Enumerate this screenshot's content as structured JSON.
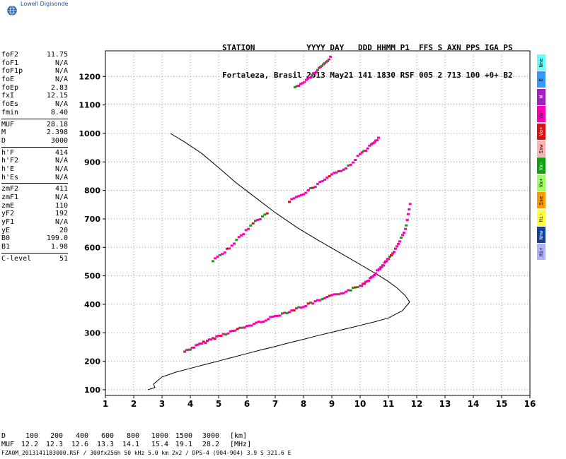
{
  "brand": {
    "text": "Lowell Digisonde",
    "color": "#1a4fa0",
    "icon": "globe-icon"
  },
  "header": {
    "line1": "STATION           YYYY DAY   DDD HHMM P1  FFS S AXN PPS IGA PS",
    "line2": "Fortaleza, Brasil 2013 May21 141 1830 RSF 005 2 713 100 +0+ B2"
  },
  "params": {
    "group1": [
      {
        "label": "foF2",
        "value": "11.75"
      },
      {
        "label": "foF1",
        "value": "N/A"
      },
      {
        "label": "foF1p",
        "value": "N/A"
      },
      {
        "label": "foE",
        "value": "N/A"
      },
      {
        "label": "foEp",
        "value": "2.83"
      },
      {
        "label": "fxI",
        "value": "12.15"
      },
      {
        "label": "foEs",
        "value": "N/A"
      },
      {
        "label": "fmin",
        "value": "8.40"
      }
    ],
    "group2": [
      {
        "label": "MUF",
        "value": "28.18"
      },
      {
        "label": "M",
        "value": "2.398"
      },
      {
        "label": "D",
        "value": "3000"
      }
    ],
    "group3": [
      {
        "label": "h'F",
        "value": "414"
      },
      {
        "label": "h'F2",
        "value": "N/A"
      },
      {
        "label": "h'E",
        "value": "N/A"
      },
      {
        "label": "h'Es",
        "value": "N/A"
      }
    ],
    "group4": [
      {
        "label": "zmF2",
        "value": "411"
      },
      {
        "label": "zmF1",
        "value": "N/A"
      },
      {
        "label": "zmE",
        "value": "110"
      },
      {
        "label": "yF2",
        "value": "192"
      },
      {
        "label": "yF1",
        "value": "N/A"
      },
      {
        "label": "yE",
        "value": "20"
      },
      {
        "label": "B0",
        "value": "199.0"
      },
      {
        "label": "B1",
        "value": "1.98"
      }
    ],
    "group5": [
      {
        "label": "C-level",
        "value": "51"
      }
    ]
  },
  "legend": [
    {
      "label": "Nne",
      "color": "#66ffff"
    },
    {
      "label": "E",
      "color": "#3399ff"
    },
    {
      "label": "W",
      "color": "#a020c0"
    },
    {
      "label": "Vo-",
      "color": "#ff00b0"
    },
    {
      "label": "Vo+",
      "color": "#e01010"
    },
    {
      "label": "Ssw",
      "color": "#ffb0b0"
    },
    {
      "label": "Vx-",
      "color": "#10a010"
    },
    {
      "label": "Vx+",
      "color": "#a0ff60"
    },
    {
      "label": "Sse",
      "color": "#ff9900"
    },
    {
      "label": "Hi-",
      "color": "#ffff40"
    },
    {
      "label": "Nnw",
      "color": "#1040a0"
    },
    {
      "label": "Hi+",
      "color": "#b0b0ff"
    }
  ],
  "muf_table": {
    "row1_label": "D",
    "row1": [
      "100",
      "200",
      "400",
      "600",
      "800",
      "1000",
      "1500",
      "3000",
      "[km]"
    ],
    "row2_label": "MUF",
    "row2": [
      "12.2",
      "12.3",
      "12.6",
      "13.3",
      "14.1",
      "15.4",
      "19.1",
      "28.2",
      "[MHz]"
    ]
  },
  "footer": "FZA0M_2013141183000.RSF / 300fx256h 50 kHz 5.0 km 2x2 / DPS-4 (904-904)  3.9 S 321.6 E",
  "chart_data": {
    "type": "scatter",
    "title": "",
    "xlabel": "",
    "ylabel": "",
    "xlim": [
      1,
      16
    ],
    "ylim": [
      80,
      1290
    ],
    "x_ticks": [
      1,
      2,
      3,
      4,
      5,
      6,
      7,
      8,
      9,
      10,
      11,
      12,
      13,
      14,
      15,
      16
    ],
    "y_ticks": [
      100,
      200,
      300,
      400,
      500,
      600,
      700,
      800,
      900,
      1000,
      1100,
      1200
    ],
    "grid": "dotted",
    "legend_placement": "right",
    "series": [
      {
        "kind": "profile-line",
        "color": "#000000",
        "points": [
          [
            2.5,
            100
          ],
          [
            2.75,
            108
          ],
          [
            2.7,
            120
          ],
          [
            3.0,
            145
          ],
          [
            3.5,
            162
          ],
          [
            4.0,
            175
          ],
          [
            4.5,
            188
          ],
          [
            5.0,
            201
          ],
          [
            5.5,
            214
          ],
          [
            6.0,
            227
          ],
          [
            6.5,
            240
          ],
          [
            7.0,
            252
          ],
          [
            7.5,
            265
          ],
          [
            8.0,
            277
          ],
          [
            8.5,
            290
          ],
          [
            9.0,
            302
          ],
          [
            9.5,
            314
          ],
          [
            10.0,
            326
          ],
          [
            10.5,
            338
          ],
          [
            11.0,
            352
          ],
          [
            11.5,
            378
          ],
          [
            11.75,
            408
          ],
          [
            11.6,
            430
          ],
          [
            11.3,
            458
          ],
          [
            11.0,
            480
          ],
          [
            10.6,
            505
          ],
          [
            10.0,
            540
          ],
          [
            9.3,
            580
          ],
          [
            8.5,
            626
          ],
          [
            7.8,
            668
          ],
          [
            7.0,
            722
          ],
          [
            6.3,
            775
          ],
          [
            5.6,
            828
          ],
          [
            5.0,
            880
          ],
          [
            4.4,
            930
          ],
          [
            3.8,
            970
          ],
          [
            3.3,
            1000
          ]
        ]
      },
      {
        "kind": "F-trace-first-hop",
        "color": "#ff00b0",
        "points": [
          [
            3.8,
            233
          ],
          [
            4.2,
            252
          ],
          [
            4.6,
            270
          ],
          [
            5.0,
            287
          ],
          [
            5.5,
            305
          ],
          [
            6.0,
            321
          ],
          [
            6.5,
            338
          ],
          [
            7.0,
            357
          ],
          [
            7.5,
            374
          ],
          [
            8.0,
            392
          ],
          [
            8.5,
            410
          ],
          [
            9.0,
            428
          ],
          [
            9.5,
            444
          ],
          [
            10.0,
            463
          ],
          [
            10.3,
            485
          ],
          [
            10.6,
            515
          ],
          [
            10.8,
            535
          ],
          [
            11.0,
            558
          ],
          [
            11.3,
            600
          ],
          [
            11.6,
            660
          ],
          [
            11.8,
            765
          ]
        ]
      },
      {
        "kind": "F-trace-second-hop",
        "color": "#ff00b0",
        "points": [
          [
            7.5,
            760
          ],
          [
            8.0,
            788
          ],
          [
            8.5,
            820
          ],
          [
            9.0,
            856
          ],
          [
            9.5,
            875
          ],
          [
            10.0,
            925
          ],
          [
            10.4,
            958
          ],
          [
            10.7,
            985
          ]
        ]
      },
      {
        "kind": "F-trace-second-hop-low",
        "color": "#ff00b0",
        "points": [
          [
            4.8,
            550
          ],
          [
            5.3,
            590
          ],
          [
            5.8,
            640
          ],
          [
            6.3,
            690
          ],
          [
            6.8,
            722
          ]
        ]
      },
      {
        "kind": "F-trace-third-hop",
        "color": "#ff00b0",
        "points": [
          [
            7.7,
            1160
          ],
          [
            8.1,
            1185
          ],
          [
            8.4,
            1212
          ],
          [
            8.7,
            1240
          ],
          [
            9.0,
            1270
          ]
        ]
      }
    ]
  }
}
